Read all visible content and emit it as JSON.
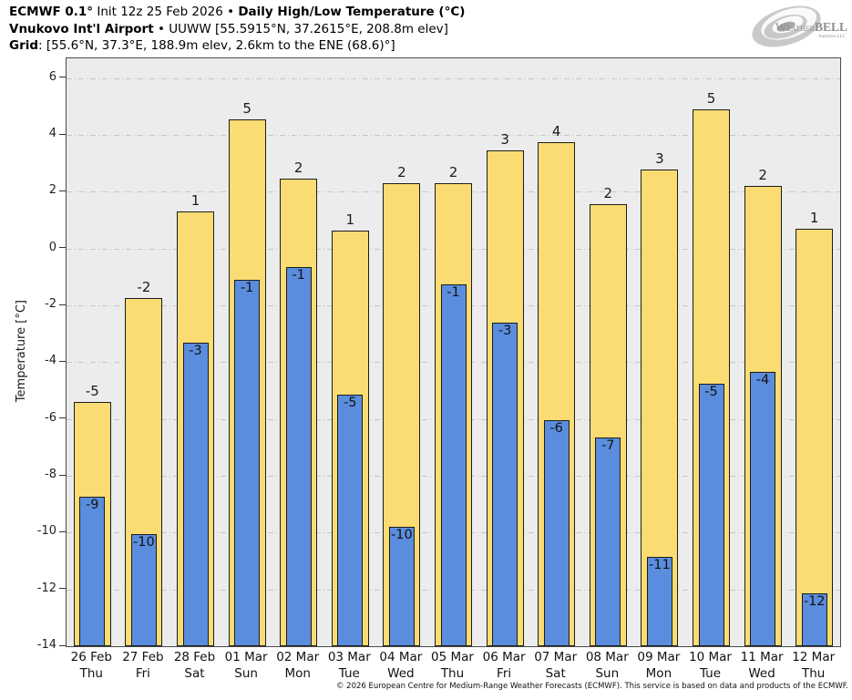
{
  "header": {
    "line1_bold1": "ECMWF 0.1°",
    "line1_normal": " Init 12z 25 Feb 2026 • ",
    "line1_bold2": "Daily High/Low Temperature (°C)",
    "line2_bold": "Vnukovo Int'l Airport",
    "line2_normal": " • UUWW [55.5915°N, 37.2615°E, 208.8m elev]",
    "line3_bold": "Grid",
    "line3_normal": ": [55.6°N, 37.3°E, 188.9m elev, 2.6km to the ENE (68.6)°]"
  },
  "logo": {
    "icon": "hurricane-swirl",
    "part_w": "W",
    "part_eather": "EATHER",
    "part_bell": "BELL",
    "subtext": "Analytics LLC"
  },
  "chart_data": {
    "type": "bar",
    "title": "ECMWF 0.1° Init 12z 25 Feb 2026 • Daily High/Low Temperature (°C)",
    "subtitle": "Vnukovo Int'l Airport • UUWW [55.5915°N, 37.2615°E, 208.8m elev]",
    "grid_info": "Grid: [55.6°N, 37.3°E, 188.9m elev, 2.6km to the ENE (68.6)°]",
    "xlabel": "",
    "ylabel": "Temperature [°C]",
    "ylim": [
      -14,
      6.7
    ],
    "yticks": [
      6,
      4,
      2,
      0,
      -2,
      -4,
      -6,
      -8,
      -10,
      -12,
      -14
    ],
    "grid": "horizontal dash-dot",
    "legend_position": "none",
    "plot_bg": "#ececec",
    "categories": [
      {
        "date": "26 Feb",
        "day": "Thu"
      },
      {
        "date": "27 Feb",
        "day": "Fri"
      },
      {
        "date": "28 Feb",
        "day": "Sat"
      },
      {
        "date": "01 Mar",
        "day": "Sun"
      },
      {
        "date": "02 Mar",
        "day": "Mon"
      },
      {
        "date": "03 Mar",
        "day": "Tue"
      },
      {
        "date": "04 Mar",
        "day": "Wed"
      },
      {
        "date": "05 Mar",
        "day": "Thu"
      },
      {
        "date": "06 Mar",
        "day": "Fri"
      },
      {
        "date": "07 Mar",
        "day": "Sat"
      },
      {
        "date": "08 Mar",
        "day": "Sun"
      },
      {
        "date": "09 Mar",
        "day": "Mon"
      },
      {
        "date": "10 Mar",
        "day": "Tue"
      },
      {
        "date": "11 Mar",
        "day": "Wed"
      },
      {
        "date": "12 Mar",
        "day": "Thu"
      }
    ],
    "series": [
      {
        "name": "Daily High",
        "color": "#fadc73",
        "border_color": "#1c1c1c",
        "labels": [
          "-5",
          "-2",
          "1",
          "5",
          "2",
          "1",
          "2",
          "2",
          "3",
          "4",
          "2",
          "3",
          "5",
          "2",
          "1"
        ],
        "values": [
          -5.4,
          -1.75,
          1.3,
          4.55,
          2.45,
          0.65,
          2.3,
          2.3,
          3.45,
          3.75,
          1.55,
          2.8,
          4.9,
          2.2,
          0.7
        ]
      },
      {
        "name": "Daily Low",
        "color": "#5b8dde",
        "border_color": "#1c1c1c",
        "labels": [
          "-9",
          "-10",
          "-3",
          "-1",
          "-1",
          "-5",
          "-10",
          "-1",
          "-3",
          "-6",
          "-7",
          "-11",
          "-5",
          "-4",
          "-12"
        ],
        "values": [
          -8.75,
          -10.05,
          -3.3,
          -1.1,
          -0.65,
          -5.15,
          -9.8,
          -1.25,
          -2.6,
          -6.05,
          -6.65,
          -10.85,
          -4.75,
          -4.35,
          -12.15
        ]
      }
    ]
  },
  "footer": {
    "copyright": "© 2026 European Centre for Medium-Range Weather Forecasts (ECMWF). This service is based on data and products of the ECMWF."
  }
}
